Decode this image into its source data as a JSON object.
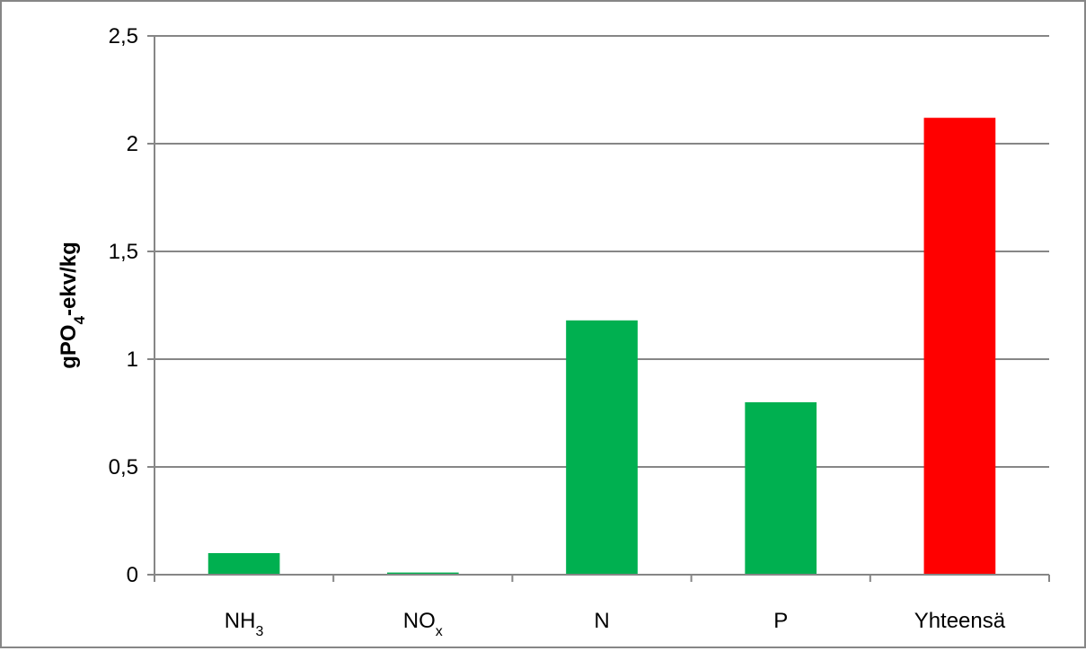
{
  "chart_data": {
    "type": "bar",
    "categories": [
      {
        "base": "NH",
        "sub": "3"
      },
      {
        "base": "NO",
        "sub": "x"
      },
      {
        "base": "N",
        "sub": ""
      },
      {
        "base": "P",
        "sub": ""
      },
      {
        "base": "Yhteensä",
        "sub": ""
      }
    ],
    "values": [
      0.1,
      0.01,
      1.18,
      0.8,
      2.12
    ],
    "bar_colors": [
      "#00B050",
      "#00B050",
      "#00B050",
      "#00B050",
      "#FF0000"
    ],
    "ylabel": {
      "pre": "gPO",
      "sub": "4",
      "post": "-ekv/kg"
    },
    "ylim": [
      0,
      2.5
    ],
    "yticks": [
      0,
      0.5,
      1,
      1.5,
      2,
      2.5
    ],
    "ytick_labels": [
      "0",
      "0,5",
      "1",
      "1,5",
      "2",
      "2,5"
    ],
    "grid": true,
    "legend": "none"
  }
}
